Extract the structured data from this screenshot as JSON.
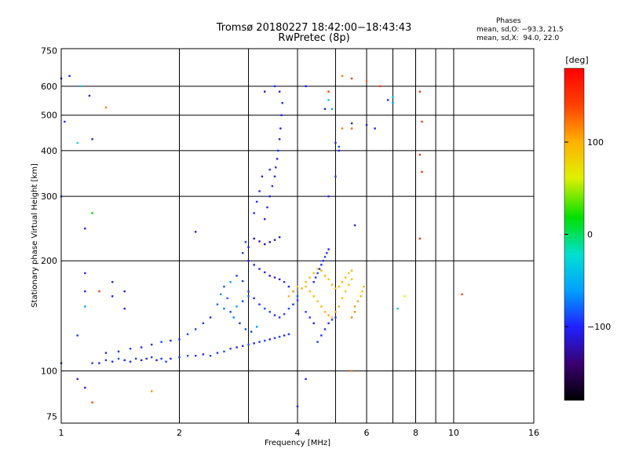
{
  "header": {
    "title": "Tromsø 20180227 18:42:00−18:43:43",
    "subtitle": "RwPretec (8p)",
    "phases": {
      "heading": "Phases",
      "line_o": "mean, sd,O: −93.3, 21.5",
      "line_x": "mean, sd,X:  94.0, 22.0"
    }
  },
  "colorbar": {
    "unit": "[deg]",
    "ticks": [
      {
        "value": 100,
        "label": "100"
      },
      {
        "value": 0,
        "label": "0"
      },
      {
        "value": -100,
        "label": "−100"
      }
    ],
    "range": [
      -180,
      180
    ],
    "colors": [
      "#000000",
      "#3a0070",
      "#2020ff",
      "#00a0ff",
      "#00e0d0",
      "#00e000",
      "#e0f000",
      "#ffb000",
      "#ff4000",
      "#ff0000"
    ]
  },
  "chart_data": {
    "type": "scatter",
    "xlabel": "Frequency [MHz]",
    "ylabel": "Stationary phase Virtual Height [km]",
    "x_scale": "log",
    "y_scale": "log",
    "xlim": [
      1,
      16
    ],
    "ylim": [
      72,
      760
    ],
    "x_ticks": [
      {
        "value": 1,
        "label": "1"
      },
      {
        "value": 2,
        "label": "2"
      },
      {
        "value": 4,
        "label": "4"
      },
      {
        "value": 6,
        "label": "6"
      },
      {
        "value": 8,
        "label": "8"
      },
      {
        "value": 10,
        "label": "10"
      },
      {
        "value": 16,
        "label": "16"
      }
    ],
    "y_ticks": [
      {
        "value": 75,
        "label": "75"
      },
      {
        "value": 100,
        "label": "100"
      },
      {
        "value": 200,
        "label": "200"
      },
      {
        "value": 300,
        "label": "300"
      },
      {
        "value": 400,
        "label": "400"
      },
      {
        "value": 500,
        "label": "500"
      },
      {
        "value": 600,
        "label": "600"
      },
      {
        "value": 750,
        "label": "750"
      }
    ],
    "x_grid": [
      1,
      2,
      3,
      4,
      5,
      6,
      7,
      8,
      9,
      10,
      16
    ],
    "y_grid": [
      100,
      200,
      300,
      400,
      500,
      600
    ],
    "grid": true,
    "point_color_variable": "phase [deg]",
    "points": [
      [
        1.2,
        105,
        -95
      ],
      [
        1.25,
        105,
        -100
      ],
      [
        1.3,
        107,
        -90
      ],
      [
        1.35,
        106,
        -95
      ],
      [
        1.4,
        108,
        -85
      ],
      [
        1.45,
        107,
        -100
      ],
      [
        1.5,
        106,
        -95
      ],
      [
        1.55,
        108,
        -90
      ],
      [
        1.6,
        107,
        -100
      ],
      [
        1.65,
        108,
        -95
      ],
      [
        1.7,
        109,
        -90
      ],
      [
        1.75,
        107,
        -100
      ],
      [
        1.8,
        108,
        -95
      ],
      [
        1.85,
        106,
        -90
      ],
      [
        1.9,
        108,
        -100
      ],
      [
        2.0,
        109,
        -95
      ],
      [
        2.1,
        110,
        -85
      ],
      [
        2.2,
        110,
        -95
      ],
      [
        2.3,
        111,
        -100
      ],
      [
        2.4,
        110,
        -90
      ],
      [
        2.5,
        112,
        -95
      ],
      [
        2.6,
        113,
        -85
      ],
      [
        2.7,
        115,
        -90
      ],
      [
        2.8,
        116,
        -100
      ],
      [
        2.9,
        117,
        -95
      ],
      [
        3.0,
        118,
        -85
      ],
      [
        3.1,
        119,
        -100
      ],
      [
        3.2,
        120,
        -95
      ],
      [
        3.3,
        121,
        -90
      ],
      [
        3.4,
        122,
        -100
      ],
      [
        3.5,
        123,
        -95
      ],
      [
        3.6,
        124,
        -90
      ],
      [
        3.7,
        125,
        -100
      ],
      [
        3.8,
        126,
        -95
      ],
      [
        1.3,
        112,
        -100
      ],
      [
        1.4,
        113,
        -95
      ],
      [
        1.5,
        115,
        -90
      ],
      [
        1.6,
        116,
        -100
      ],
      [
        1.7,
        118,
        -95
      ],
      [
        1.8,
        120,
        -90
      ],
      [
        1.9,
        121,
        -100
      ],
      [
        2.0,
        122,
        -95
      ],
      [
        2.1,
        126,
        -85
      ],
      [
        2.2,
        130,
        -90
      ],
      [
        2.3,
        135,
        -95
      ],
      [
        2.4,
        140,
        -100
      ],
      [
        2.5,
        152,
        -80
      ],
      [
        2.6,
        148,
        -70
      ],
      [
        2.7,
        145,
        -90
      ],
      [
        2.8,
        150,
        -60
      ],
      [
        2.9,
        155,
        -85
      ],
      [
        3.0,
        160,
        -75
      ],
      [
        2.55,
        162,
        -65
      ],
      [
        2.65,
        158,
        -80
      ],
      [
        2.75,
        140,
        -70
      ],
      [
        2.85,
        135,
        -95
      ],
      [
        2.95,
        130,
        -85
      ],
      [
        3.05,
        128,
        -90
      ],
      [
        3.15,
        132,
        -60
      ],
      [
        2.6,
        170,
        -85
      ],
      [
        2.7,
        175,
        -60
      ],
      [
        2.8,
        182,
        -90
      ],
      [
        2.9,
        176,
        -95
      ],
      [
        3.0,
        165,
        -90
      ],
      [
        3.1,
        158,
        -100
      ],
      [
        3.2,
        152,
        -95
      ],
      [
        3.3,
        148,
        -85
      ],
      [
        3.4,
        145,
        -90
      ],
      [
        3.5,
        142,
        -100
      ],
      [
        3.6,
        140,
        -95
      ],
      [
        3.7,
        143,
        -90
      ],
      [
        3.8,
        148,
        -85
      ],
      [
        3.9,
        152,
        -95
      ],
      [
        4.0,
        156,
        -90
      ],
      [
        3.0,
        200,
        -110
      ],
      [
        3.1,
        195,
        -100
      ],
      [
        3.2,
        190,
        -105
      ],
      [
        3.3,
        186,
        -95
      ],
      [
        3.4,
        182,
        -110
      ],
      [
        3.5,
        180,
        -100
      ],
      [
        3.6,
        178,
        -105
      ],
      [
        3.7,
        175,
        -95
      ],
      [
        3.8,
        170,
        -100
      ],
      [
        3.9,
        165,
        -95
      ],
      [
        4.0,
        160,
        -85
      ],
      [
        3.1,
        230,
        -120
      ],
      [
        3.2,
        226,
        -115
      ],
      [
        3.3,
        222,
        -125
      ],
      [
        3.4,
        225,
        -120
      ],
      [
        3.5,
        228,
        -115
      ],
      [
        3.6,
        232,
        -110
      ],
      [
        2.9,
        210,
        -95
      ],
      [
        3.0,
        218,
        -100
      ],
      [
        2.95,
        225,
        -90
      ],
      [
        3.3,
        260,
        -100
      ],
      [
        3.35,
        280,
        -95
      ],
      [
        3.4,
        300,
        -100
      ],
      [
        3.45,
        320,
        -95
      ],
      [
        3.5,
        340,
        -100
      ],
      [
        3.52,
        360,
        -95
      ],
      [
        3.55,
        380,
        -100
      ],
      [
        3.57,
        400,
        -95
      ],
      [
        3.6,
        430,
        -100
      ],
      [
        3.62,
        460,
        -105
      ],
      [
        3.64,
        500,
        -100
      ],
      [
        3.66,
        540,
        -95
      ],
      [
        3.6,
        580,
        -100
      ],
      [
        3.5,
        600,
        -95
      ],
      [
        3.3,
        580,
        -110
      ],
      [
        3.2,
        310,
        -100
      ],
      [
        3.25,
        340,
        -105
      ],
      [
        3.4,
        355,
        -95
      ],
      [
        3.1,
        270,
        -100
      ],
      [
        3.15,
        290,
        -95
      ],
      [
        4.2,
        170,
        90
      ],
      [
        4.3,
        165,
        95
      ],
      [
        4.4,
        160,
        100
      ],
      [
        4.5,
        155,
        90
      ],
      [
        4.6,
        150,
        95
      ],
      [
        4.7,
        145,
        100
      ],
      [
        4.8,
        142,
        105
      ],
      [
        4.9,
        140,
        90
      ],
      [
        5.0,
        145,
        95
      ],
      [
        5.1,
        150,
        100
      ],
      [
        5.2,
        158,
        90
      ],
      [
        5.3,
        165,
        95
      ],
      [
        5.4,
        172,
        100
      ],
      [
        5.5,
        178,
        90
      ],
      [
        3.8,
        160,
        100
      ],
      [
        3.9,
        165,
        95
      ],
      [
        4.0,
        170,
        90
      ],
      [
        4.1,
        168,
        100
      ],
      [
        4.2,
        175,
        95
      ],
      [
        4.3,
        180,
        90
      ],
      [
        4.4,
        185,
        100
      ],
      [
        4.5,
        190,
        95
      ],
      [
        4.6,
        188,
        100
      ],
      [
        4.7,
        182,
        95
      ],
      [
        4.8,
        178,
        90
      ],
      [
        4.9,
        172,
        100
      ],
      [
        5.0,
        168,
        95
      ],
      [
        5.1,
        170,
        90
      ],
      [
        5.2,
        175,
        100
      ],
      [
        5.3,
        180,
        95
      ],
      [
        5.4,
        185,
        90
      ],
      [
        5.5,
        188,
        100
      ],
      [
        5.6,
        150,
        110
      ],
      [
        5.7,
        155,
        105
      ],
      [
        5.8,
        160,
        100
      ],
      [
        5.85,
        165,
        95
      ],
      [
        5.9,
        170,
        100
      ],
      [
        5.5,
        140,
        120
      ],
      [
        5.6,
        145,
        115
      ],
      [
        4.5,
        120,
        -90
      ],
      [
        4.6,
        125,
        -95
      ],
      [
        4.7,
        130,
        -100
      ],
      [
        4.8,
        135,
        -95
      ],
      [
        4.9,
        138,
        -90
      ],
      [
        5.0,
        140,
        -95
      ],
      [
        4.4,
        135,
        -100
      ],
      [
        4.3,
        140,
        -95
      ],
      [
        4.2,
        145,
        -90
      ],
      [
        4.4,
        175,
        -100
      ],
      [
        4.45,
        180,
        -95
      ],
      [
        4.5,
        185,
        -90
      ],
      [
        4.55,
        190,
        -95
      ],
      [
        4.6,
        195,
        -100
      ],
      [
        4.65,
        200,
        -95
      ],
      [
        4.7,
        205,
        -90
      ],
      [
        4.75,
        210,
        -95
      ],
      [
        4.8,
        215,
        -100
      ],
      [
        1.0,
        630,
        -100
      ],
      [
        1.02,
        480,
        -95
      ],
      [
        1.0,
        300,
        -90
      ],
      [
        1.0,
        105,
        -95
      ],
      [
        1.05,
        640,
        -100
      ],
      [
        1.12,
        600,
        -40
      ],
      [
        1.18,
        565,
        -100
      ],
      [
        1.3,
        525,
        120
      ],
      [
        1.1,
        420,
        -20
      ],
      [
        1.2,
        430,
        -100
      ],
      [
        1.2,
        270,
        20
      ],
      [
        1.15,
        245,
        -100
      ],
      [
        1.15,
        185,
        -100
      ],
      [
        1.15,
        165,
        -100
      ],
      [
        1.25,
        165,
        140
      ],
      [
        1.35,
        175,
        -100
      ],
      [
        1.45,
        165,
        -100
      ],
      [
        1.35,
        160,
        -100
      ],
      [
        1.45,
        148,
        -100
      ],
      [
        1.15,
        150,
        -60
      ],
      [
        1.1,
        95,
        -100
      ],
      [
        1.15,
        90,
        -100
      ],
      [
        1.2,
        82,
        140
      ],
      [
        1.7,
        88,
        110
      ],
      [
        2.2,
        240,
        -100
      ],
      [
        1.1,
        125,
        -90
      ],
      [
        4.2,
        600,
        -100
      ],
      [
        4.8,
        580,
        140
      ],
      [
        5.2,
        640,
        120
      ],
      [
        5.5,
        630,
        140
      ],
      [
        6.0,
        620,
        130
      ],
      [
        6.5,
        600,
        140
      ],
      [
        7.0,
        560,
        -30
      ],
      [
        7.0,
        540,
        -60
      ],
      [
        6.8,
        550,
        -100
      ],
      [
        4.7,
        520,
        -100
      ],
      [
        4.9,
        520,
        -50
      ],
      [
        4.8,
        550,
        -40
      ],
      [
        5.2,
        460,
        120
      ],
      [
        5.5,
        460,
        130
      ],
      [
        5.5,
        475,
        -100
      ],
      [
        6.0,
        470,
        -100
      ],
      [
        6.3,
        460,
        -100
      ],
      [
        5.0,
        420,
        -100
      ],
      [
        5.1,
        410,
        -80
      ],
      [
        5.1,
        400,
        -100
      ],
      [
        4.8,
        300,
        -100
      ],
      [
        5.0,
        340,
        -90
      ],
      [
        5.6,
        250,
        -100
      ],
      [
        5.5,
        100,
        120
      ],
      [
        4.0,
        80,
        -100
      ],
      [
        4.2,
        95,
        -100
      ],
      [
        8.2,
        580,
        150
      ],
      [
        8.3,
        480,
        150
      ],
      [
        8.2,
        390,
        150
      ],
      [
        8.3,
        350,
        150
      ],
      [
        8.2,
        230,
        150
      ],
      [
        10.5,
        162,
        140
      ],
      [
        7.2,
        148,
        -30
      ],
      [
        7.5,
        160,
        60
      ]
    ]
  }
}
